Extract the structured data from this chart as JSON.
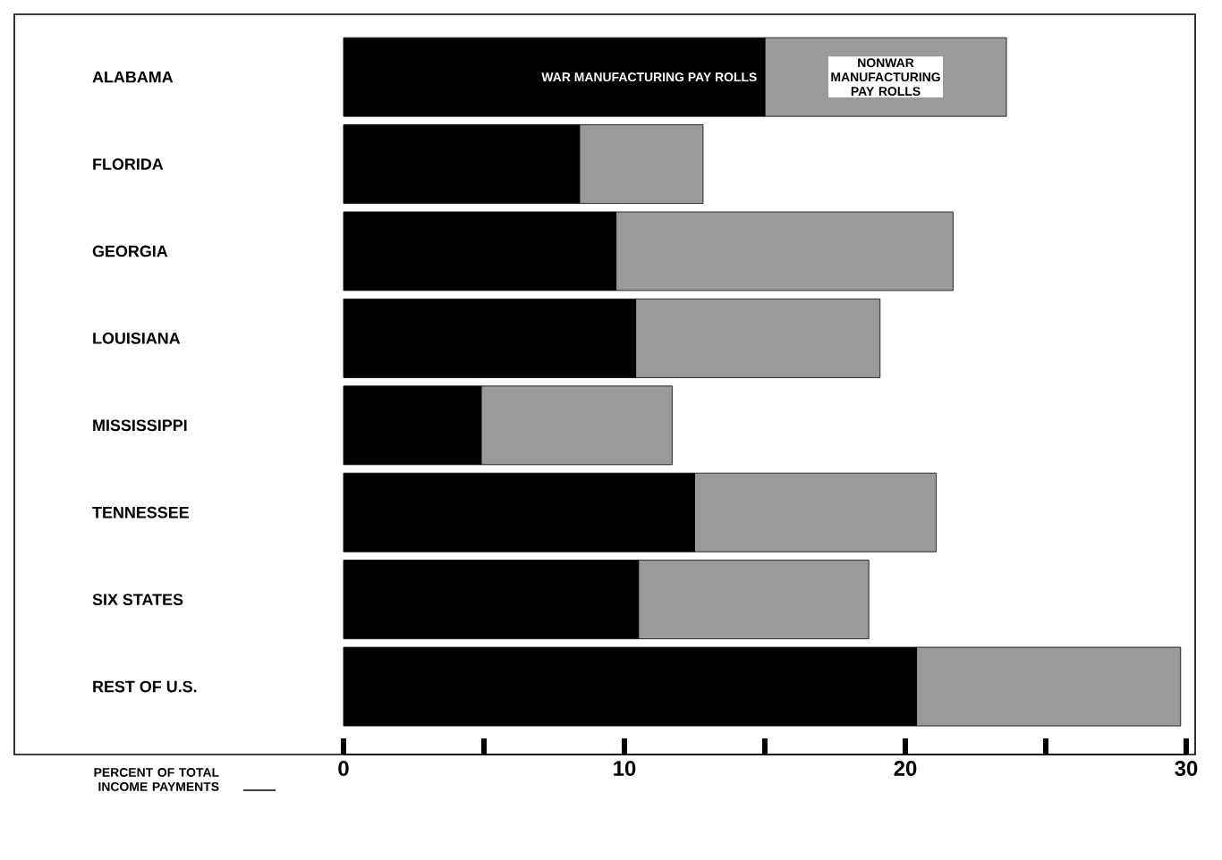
{
  "chart_data": {
    "type": "bar",
    "orientation": "horizontal",
    "stacked": true,
    "categories": [
      "ALABAMA",
      "FLORIDA",
      "GEORGIA",
      "LOUISIANA",
      "MISSISSIPPI",
      "TENNESSEE",
      "SIX STATES",
      "REST OF U.S."
    ],
    "series": [
      {
        "name": "WAR MANUFACTURING PAY ROLLS",
        "color": "#000000",
        "values": [
          15.0,
          8.4,
          9.7,
          10.4,
          4.9,
          12.5,
          10.5,
          20.4
        ]
      },
      {
        "name": "NONWAR MANUFACTURING PAY ROLLS",
        "color": "#9a9a9a",
        "values": [
          8.6,
          4.4,
          12.0,
          8.7,
          6.8,
          8.6,
          8.2,
          9.4
        ]
      }
    ],
    "xlabel": "PERCENT OF TOTAL INCOME PAYMENTS",
    "xlim": [
      0,
      30
    ],
    "xticks": [
      0,
      {
        "value": 5,
        "label": null
      },
      10,
      {
        "value": 15,
        "label": null
      },
      20,
      {
        "value": 25,
        "label": null
      },
      30
    ],
    "grid": false
  }
}
